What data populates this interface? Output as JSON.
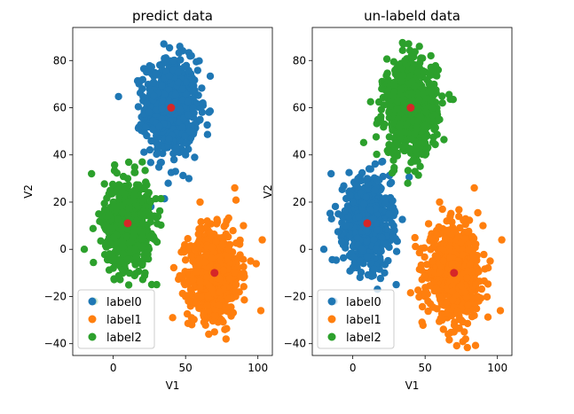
{
  "chart_data": [
    {
      "type": "scatter",
      "title": "predict data",
      "xlabel": "V1",
      "ylabel": "V2",
      "xlim": [
        -28,
        110
      ],
      "ylim": [
        -45,
        94
      ],
      "xticks": [
        0,
        50,
        100
      ],
      "yticks": [
        -40,
        -20,
        0,
        20,
        40,
        60,
        80
      ],
      "legend_position": "lower left",
      "series": [
        {
          "name": "label0",
          "color": "#1f77b4",
          "center": [
            40,
            60
          ],
          "spread": [
            9,
            10
          ],
          "count": 700,
          "samples": [
            [
              40,
              60
            ],
            [
              32,
              52
            ],
            [
              48,
              68
            ],
            [
              36,
              80
            ],
            [
              50,
              45
            ],
            [
              28,
              65
            ],
            [
              45,
              75
            ],
            [
              55,
              60
            ],
            [
              30,
              45
            ],
            [
              42,
              38
            ],
            [
              20,
              68
            ],
            [
              60,
              55
            ],
            [
              35,
              87
            ],
            [
              46,
              86
            ],
            [
              54,
              82
            ],
            [
              25,
              58
            ],
            [
              38,
              28
            ],
            [
              62,
              62
            ],
            [
              50,
              40
            ],
            [
              43,
              33
            ]
          ]
        },
        {
          "name": "label1",
          "color": "#ff7f0e",
          "center": [
            70,
            -10
          ],
          "spread": [
            9,
            9
          ],
          "count": 700,
          "samples": [
            [
              70,
              -10
            ],
            [
              60,
              -20
            ],
            [
              80,
              0
            ],
            [
              65,
              12
            ],
            [
              75,
              -30
            ],
            [
              55,
              -5
            ],
            [
              85,
              -15
            ],
            [
              90,
              10
            ],
            [
              50,
              -20
            ],
            [
              70,
              -35
            ],
            [
              103,
              4
            ],
            [
              102,
              -26
            ],
            [
              84,
              26
            ],
            [
              52,
              -22
            ],
            [
              60,
              20
            ],
            [
              95,
              -5
            ],
            [
              78,
              -38
            ],
            [
              66,
              -36
            ]
          ]
        },
        {
          "name": "label2",
          "color": "#2ca02c",
          "center": [
            10,
            11
          ],
          "spread": [
            8,
            9
          ],
          "count": 700,
          "samples": [
            [
              10,
              11
            ],
            [
              0,
              20
            ],
            [
              20,
              5
            ],
            [
              5,
              -5
            ],
            [
              15,
              25
            ],
            [
              -5,
              10
            ],
            [
              25,
              15
            ],
            [
              10,
              30
            ],
            [
              0,
              -8
            ],
            [
              -15,
              32
            ],
            [
              -20,
              0
            ],
            [
              -13,
              -22
            ],
            [
              22,
              -10
            ],
            [
              30,
              -15
            ],
            [
              20,
              37
            ],
            [
              -10,
              15
            ],
            [
              28,
              5
            ]
          ]
        }
      ],
      "centers": {
        "color": "#d62728",
        "points": [
          [
            40,
            60
          ],
          [
            70,
            -10
          ],
          [
            10,
            11
          ]
        ]
      }
    },
    {
      "type": "scatter",
      "title": "un-labeld data",
      "xlabel": "V1",
      "ylabel": "V2",
      "xlim": [
        -28,
        110
      ],
      "ylim": [
        -45,
        94
      ],
      "xticks": [
        0,
        50,
        100
      ],
      "yticks": [
        -40,
        -20,
        0,
        20,
        40,
        60,
        80
      ],
      "legend_position": "lower left",
      "series": [
        {
          "name": "label0",
          "color": "#1f77b4",
          "center": [
            10,
            11
          ],
          "spread": [
            8,
            9
          ],
          "count": 700,
          "samples": [
            [
              10,
              11
            ],
            [
              0,
              20
            ],
            [
              20,
              5
            ],
            [
              5,
              -5
            ],
            [
              15,
              25
            ],
            [
              -5,
              10
            ],
            [
              25,
              15
            ],
            [
              10,
              30
            ],
            [
              0,
              -8
            ],
            [
              -15,
              32
            ],
            [
              -20,
              0
            ],
            [
              -13,
              -22
            ],
            [
              22,
              -10
            ],
            [
              30,
              -15
            ],
            [
              20,
              37
            ],
            [
              -10,
              15
            ],
            [
              28,
              5
            ]
          ]
        },
        {
          "name": "label1",
          "color": "#ff7f0e",
          "center": [
            70,
            -10
          ],
          "spread": [
            9,
            9
          ],
          "count": 700,
          "samples": [
            [
              70,
              -10
            ],
            [
              60,
              -20
            ],
            [
              80,
              0
            ],
            [
              65,
              12
            ],
            [
              75,
              -30
            ],
            [
              55,
              -5
            ],
            [
              85,
              -15
            ],
            [
              90,
              10
            ],
            [
              50,
              -20
            ],
            [
              70,
              -35
            ],
            [
              103,
              4
            ],
            [
              102,
              -26
            ],
            [
              84,
              26
            ],
            [
              52,
              -22
            ],
            [
              60,
              20
            ],
            [
              95,
              -5
            ],
            [
              78,
              -38
            ],
            [
              66,
              -36
            ]
          ]
        },
        {
          "name": "label2",
          "color": "#2ca02c",
          "center": [
            40,
            60
          ],
          "spread": [
            9,
            10
          ],
          "count": 700,
          "samples": [
            [
              40,
              60
            ],
            [
              32,
              52
            ],
            [
              48,
              68
            ],
            [
              36,
              80
            ],
            [
              50,
              45
            ],
            [
              28,
              65
            ],
            [
              45,
              75
            ],
            [
              55,
              60
            ],
            [
              30,
              45
            ],
            [
              42,
              38
            ],
            [
              20,
              68
            ],
            [
              60,
              55
            ],
            [
              35,
              87
            ],
            [
              46,
              86
            ],
            [
              54,
              82
            ],
            [
              25,
              58
            ],
            [
              38,
              28
            ],
            [
              62,
              62
            ],
            [
              50,
              40
            ],
            [
              43,
              33
            ]
          ]
        }
      ],
      "centers": {
        "color": "#d62728",
        "points": [
          [
            40,
            60
          ],
          [
            70,
            -10
          ],
          [
            10,
            11
          ]
        ]
      }
    }
  ]
}
